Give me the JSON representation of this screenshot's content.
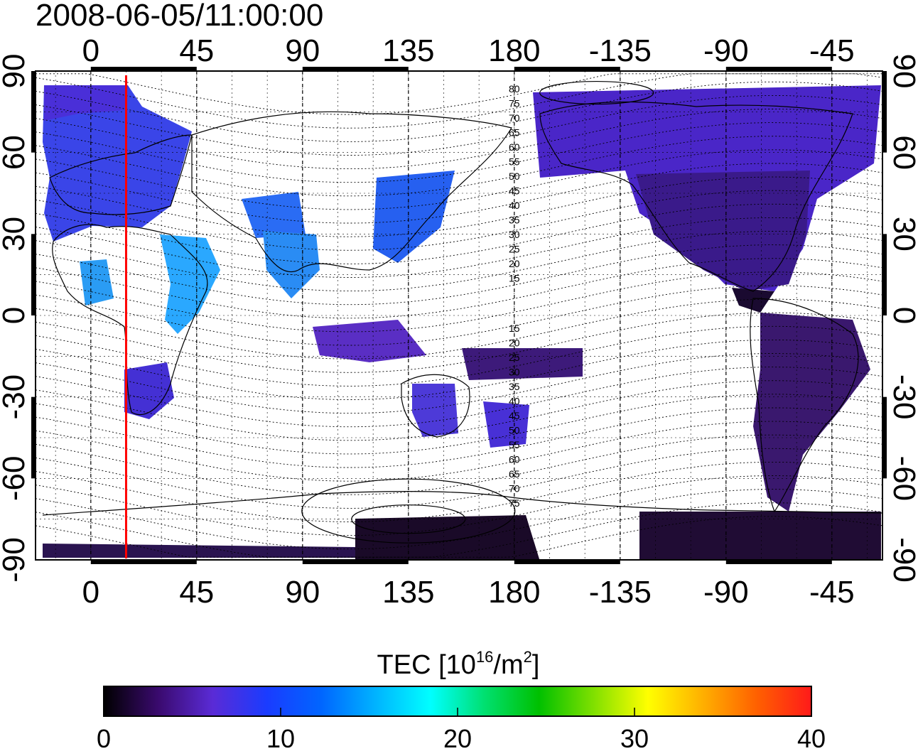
{
  "title": "2008-06-05/11:00:00",
  "map": {
    "lon_ticks": [
      0,
      45,
      90,
      135,
      180,
      -135,
      -90,
      -45
    ],
    "lat_ticks": [
      90,
      60,
      30,
      0,
      -30,
      -60,
      -90
    ],
    "contour_labels": {
      "north": [
        "80",
        "75",
        "70",
        "65",
        "60",
        "55",
        "50",
        "45",
        "40",
        "35",
        "30",
        "25",
        "20",
        "15"
      ],
      "south": [
        "15",
        "20",
        "25",
        "30",
        "35",
        "40",
        "45",
        "50",
        "55",
        "60",
        "65",
        "70",
        "75"
      ]
    },
    "terminator_longitude": 15,
    "terminator_color": "#ff0000"
  },
  "colorbar": {
    "label_main": "TEC  [10",
    "label_sup1": "16",
    "label_mid": "/m",
    "label_sup2": "2",
    "label_end": "]",
    "ticks": [
      "0",
      "10",
      "20",
      "30",
      "40"
    ],
    "min": 0,
    "max": 40,
    "colors": [
      "#000000",
      "#3a0a6e",
      "#5a2bd6",
      "#1a3cff",
      "#0066ff",
      "#00b4ff",
      "#00ffff",
      "#00e070",
      "#00c000",
      "#80e000",
      "#ffff00",
      "#ffb000",
      "#ff6000",
      "#ff1a1a"
    ]
  }
}
